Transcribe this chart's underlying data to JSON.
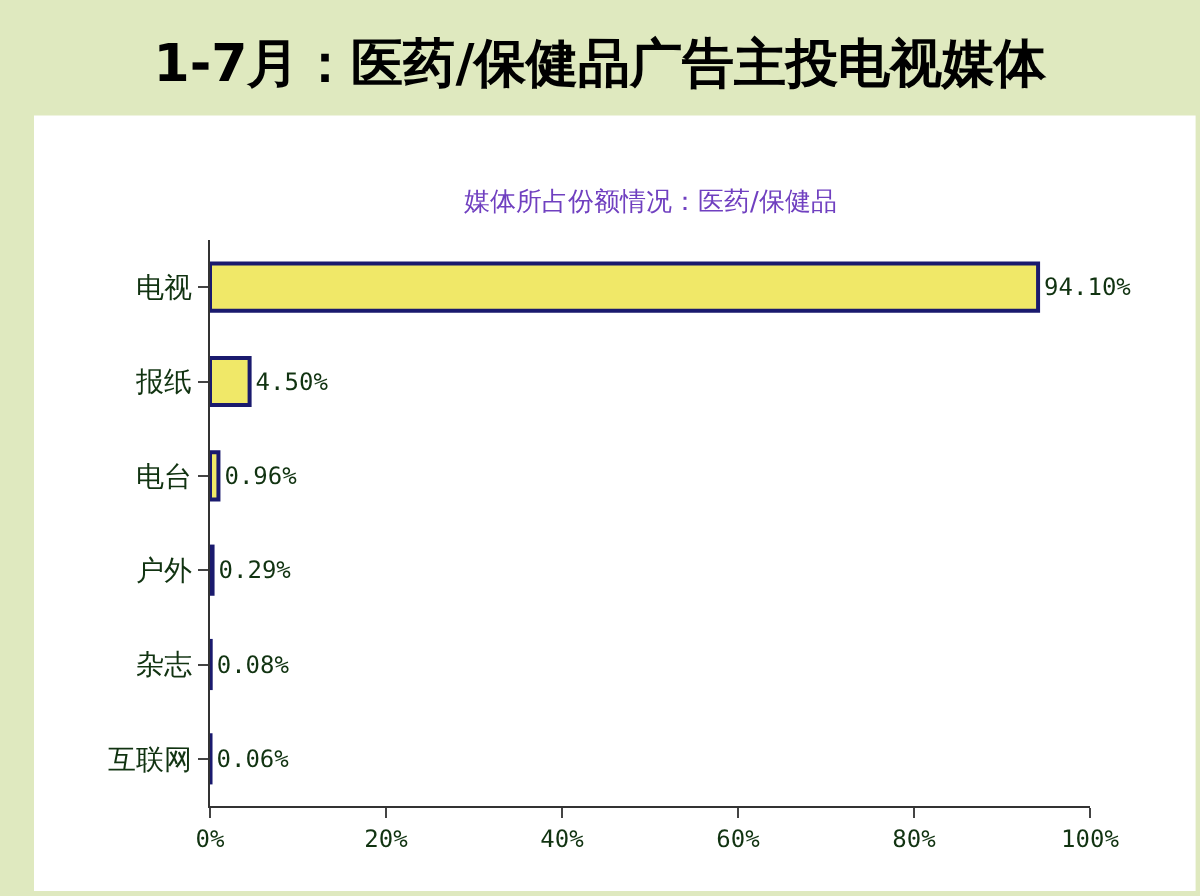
{
  "chart_data": {
    "type": "bar",
    "orientation": "horizontal",
    "title": "1-7月：医药/保健品广告主投电视媒体",
    "subtitle": "媒体所占份额情况：医药/保健品",
    "categories": [
      "电视",
      "报纸",
      "电台",
      "户外",
      "杂志",
      "互联网"
    ],
    "values": [
      94.1,
      4.5,
      0.96,
      0.29,
      0.08,
      0.06
    ],
    "value_labels": [
      "94.10%",
      "4.50%",
      "0.96%",
      "0.29%",
      "0.08%",
      "0.06%"
    ],
    "color": "#f0e868",
    "xlim": [
      0,
      100
    ],
    "xticks": [
      {
        "value": 0,
        "label": "0%"
      },
      {
        "value": 20,
        "label": "20%"
      },
      {
        "value": 40,
        "label": "40%"
      },
      {
        "value": 60,
        "label": "60%"
      },
      {
        "value": 80,
        "label": "80%"
      },
      {
        "value": 100,
        "label": "100%"
      }
    ],
    "legend": false
  }
}
